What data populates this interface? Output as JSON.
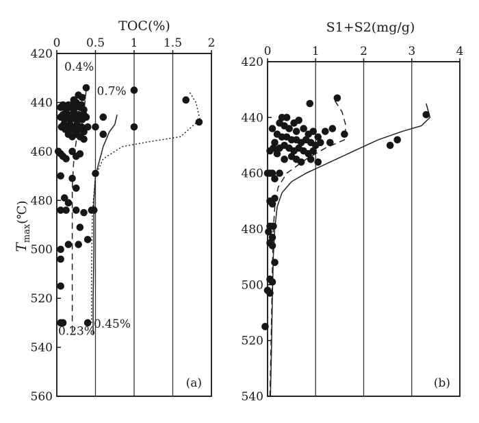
{
  "ylabel_main": "T",
  "ylabel_sub": "max",
  "ylabel_unit": "(℃)",
  "chart_data": [
    {
      "type": "scatter",
      "panel_label": "(a)",
      "title": "TOC(%)",
      "xlim": [
        0,
        2
      ],
      "ylim": [
        420,
        560
      ],
      "y_reversed": true,
      "xticks": [
        "0",
        "0.5",
        "1",
        "1.5",
        "2"
      ],
      "yticks": [
        "420",
        "440",
        "460",
        "480",
        "500",
        "520",
        "540",
        "560"
      ],
      "grid_x": true,
      "points": [
        [
          0.05,
          442
        ],
        [
          0.08,
          441
        ],
        [
          0.1,
          442
        ],
        [
          0.12,
          443
        ],
        [
          0.15,
          441
        ],
        [
          0.18,
          442
        ],
        [
          0.2,
          441
        ],
        [
          0.22,
          443
        ],
        [
          0.25,
          440
        ],
        [
          0.28,
          441
        ],
        [
          0.3,
          442
        ],
        [
          0.32,
          441
        ],
        [
          0.35,
          443
        ],
        [
          0.05,
          446
        ],
        [
          0.08,
          445
        ],
        [
          0.1,
          447
        ],
        [
          0.13,
          446
        ],
        [
          0.15,
          445
        ],
        [
          0.18,
          447
        ],
        [
          0.2,
          445
        ],
        [
          0.22,
          446
        ],
        [
          0.25,
          447
        ],
        [
          0.28,
          445
        ],
        [
          0.3,
          446
        ],
        [
          0.33,
          447
        ],
        [
          0.35,
          445
        ],
        [
          0.38,
          446
        ],
        [
          0.06,
          450
        ],
        [
          0.09,
          449
        ],
        [
          0.11,
          451
        ],
        [
          0.14,
          450
        ],
        [
          0.17,
          449
        ],
        [
          0.2,
          451
        ],
        [
          0.23,
          450
        ],
        [
          0.26,
          449
        ],
        [
          0.29,
          451
        ],
        [
          0.32,
          450
        ],
        [
          0.35,
          452
        ],
        [
          0.4,
          450
        ],
        [
          0.15,
          453
        ],
        [
          0.2,
          454
        ],
        [
          0.25,
          453
        ],
        [
          0.3,
          454
        ],
        [
          0.35,
          455
        ],
        [
          0.38,
          434
        ],
        [
          0.28,
          437
        ],
        [
          0.22,
          439
        ],
        [
          0.33,
          438
        ],
        [
          0.5,
          450
        ],
        [
          0.6,
          446
        ],
        [
          0.6,
          453
        ],
        [
          1.0,
          435
        ],
        [
          1.0,
          450
        ],
        [
          1.67,
          439
        ],
        [
          1.84,
          448
        ],
        [
          0.02,
          460
        ],
        [
          0.05,
          461
        ],
        [
          0.08,
          462
        ],
        [
          0.12,
          463
        ],
        [
          0.2,
          460
        ],
        [
          0.25,
          462
        ],
        [
          0.3,
          461
        ],
        [
          0.5,
          469
        ],
        [
          0.05,
          470
        ],
        [
          0.2,
          471
        ],
        [
          0.25,
          475
        ],
        [
          0.1,
          479
        ],
        [
          0.15,
          481
        ],
        [
          0.12,
          484
        ],
        [
          0.05,
          484
        ],
        [
          0.25,
          484
        ],
        [
          0.35,
          485
        ],
        [
          0.45,
          484
        ],
        [
          0.48,
          484
        ],
        [
          0.3,
          491
        ],
        [
          0.4,
          496
        ],
        [
          0.15,
          498
        ],
        [
          0.28,
          498
        ],
        [
          0.05,
          500
        ],
        [
          0.05,
          504
        ],
        [
          0.05,
          515
        ],
        [
          0.05,
          530
        ],
        [
          0.08,
          530
        ],
        [
          0.4,
          530
        ]
      ],
      "annotations": [
        {
          "text": "0.4%",
          "x": 0.08,
          "y": 427
        },
        {
          "text": "0.7%",
          "x": 0.5,
          "y": 437
        },
        {
          "text": "0.45%",
          "x": 0.46,
          "y": 532
        },
        {
          "text": "0.23%",
          "x": 0.0,
          "y": 535
        }
      ],
      "curves": [
        {
          "style": "dashed",
          "points": [
            [
              0.38,
              435
            ],
            [
              0.36,
              441
            ],
            [
              0.3,
              448
            ],
            [
              0.25,
              456
            ],
            [
              0.22,
              463
            ],
            [
              0.2,
              475
            ],
            [
              0.2,
              495
            ],
            [
              0.2,
              515
            ],
            [
              0.2,
              535
            ]
          ]
        },
        {
          "style": "solid",
          "points": [
            [
              0.78,
              445
            ],
            [
              0.75,
              449
            ],
            [
              0.68,
              452
            ],
            [
              0.6,
              458
            ],
            [
              0.55,
              464
            ],
            [
              0.5,
              470
            ],
            [
              0.48,
              480
            ],
            [
              0.48,
              500
            ],
            [
              0.47,
              520
            ],
            [
              0.47,
              535
            ]
          ]
        },
        {
          "style": "dotted",
          "points": [
            [
              1.72,
              436
            ],
            [
              1.8,
              440
            ],
            [
              1.85,
              447
            ],
            [
              1.6,
              454
            ],
            [
              1.2,
              456
            ],
            [
              0.85,
              458
            ],
            [
              0.6,
              463
            ],
            [
              0.5,
              470
            ],
            [
              0.46,
              485
            ],
            [
              0.45,
              510
            ],
            [
              0.45,
              530
            ]
          ]
        }
      ]
    },
    {
      "type": "scatter",
      "panel_label": "(b)",
      "title": "S1+S2(mg/g)",
      "xlim": [
        0,
        4
      ],
      "ylim": [
        420,
        540
      ],
      "y_reversed": true,
      "xticks": [
        "0",
        "1",
        "2",
        "3",
        "4"
      ],
      "yticks": [
        "420",
        "440",
        "460",
        "480",
        "500",
        "520",
        "540"
      ],
      "grid_x": true,
      "points": [
        [
          1.45,
          433
        ],
        [
          0.88,
          435
        ],
        [
          3.3,
          439
        ],
        [
          0.3,
          440
        ],
        [
          0.4,
          440
        ],
        [
          0.25,
          442
        ],
        [
          0.35,
          443
        ],
        [
          0.55,
          442
        ],
        [
          0.65,
          441
        ],
        [
          0.45,
          444
        ],
        [
          0.6,
          445
        ],
        [
          0.75,
          444
        ],
        [
          0.85,
          446
        ],
        [
          0.95,
          445
        ],
        [
          1.05,
          447
        ],
        [
          1.2,
          445
        ],
        [
          1.35,
          444
        ],
        [
          0.1,
          444
        ],
        [
          0.2,
          446
        ],
        [
          0.3,
          447
        ],
        [
          0.4,
          447
        ],
        [
          0.5,
          448
        ],
        [
          0.6,
          448
        ],
        [
          0.7,
          449
        ],
        [
          0.8,
          448
        ],
        [
          0.9,
          449
        ],
        [
          1.0,
          450
        ],
        [
          1.1,
          449
        ],
        [
          0.15,
          449
        ],
        [
          0.25,
          451
        ],
        [
          0.35,
          450
        ],
        [
          0.45,
          451
        ],
        [
          0.55,
          452
        ],
        [
          0.65,
          451
        ],
        [
          0.75,
          452
        ],
        [
          0.85,
          453
        ],
        [
          0.95,
          452
        ],
        [
          1.6,
          446
        ],
        [
          1.3,
          449
        ],
        [
          0.05,
          452
        ],
        [
          0.12,
          451
        ],
        [
          0.2,
          453
        ],
        [
          0.35,
          455
        ],
        [
          0.5,
          454
        ],
        [
          0.6,
          455
        ],
        [
          0.7,
          456
        ],
        [
          0.9,
          455
        ],
        [
          1.05,
          456
        ],
        [
          2.55,
          450
        ],
        [
          2.7,
          448
        ],
        [
          0.0,
          460
        ],
        [
          0.05,
          460
        ],
        [
          0.1,
          460
        ],
        [
          0.15,
          462
        ],
        [
          0.25,
          460
        ],
        [
          0.05,
          470
        ],
        [
          0.1,
          471
        ],
        [
          0.15,
          469
        ],
        [
          0.05,
          479
        ],
        [
          0.12,
          479
        ],
        [
          0.02,
          481
        ],
        [
          0.1,
          483
        ],
        [
          0.05,
          485
        ],
        [
          0.1,
          486
        ],
        [
          0.15,
          492
        ],
        [
          0.05,
          498
        ],
        [
          0.1,
          499
        ],
        [
          0.0,
          502
        ],
        [
          0.05,
          503
        ],
        [
          -0.05,
          515
        ]
      ],
      "curves": [
        {
          "style": "dashed",
          "points": [
            [
              1.4,
              434
            ],
            [
              1.55,
              438
            ],
            [
              1.63,
              443
            ],
            [
              1.6,
              448
            ],
            [
              1.2,
              451
            ],
            [
              0.8,
              455
            ],
            [
              0.4,
              460
            ],
            [
              0.22,
              465
            ],
            [
              0.16,
              470
            ],
            [
              0.12,
              480
            ],
            [
              0.1,
              495
            ],
            [
              0.08,
              515
            ],
            [
              0.05,
              540
            ]
          ]
        },
        {
          "style": "solid",
          "points": [
            [
              3.3,
              435
            ],
            [
              3.38,
              440
            ],
            [
              3.2,
              443
            ],
            [
              2.8,
              445
            ],
            [
              2.3,
              448
            ],
            [
              1.8,
              452
            ],
            [
              1.3,
              456
            ],
            [
              0.8,
              460
            ],
            [
              0.5,
              463
            ],
            [
              0.3,
              467
            ],
            [
              0.2,
              472
            ],
            [
              0.15,
              480
            ],
            [
              0.12,
              490
            ],
            [
              0.1,
              505
            ],
            [
              0.08,
              525
            ],
            [
              0.06,
              540
            ]
          ]
        }
      ]
    }
  ]
}
